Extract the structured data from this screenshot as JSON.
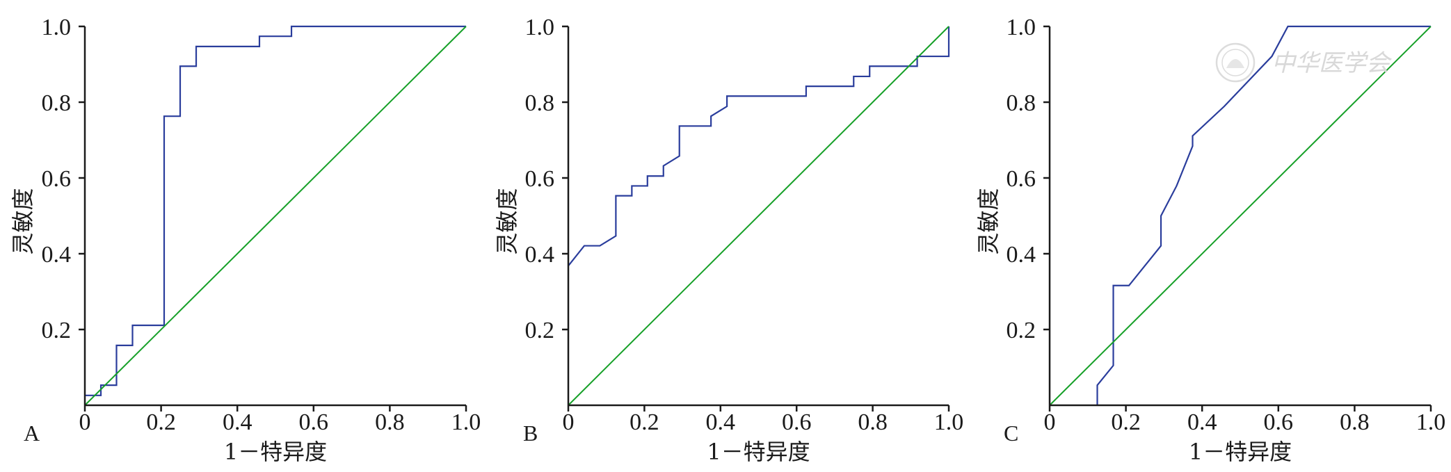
{
  "colors": {
    "roc": "#2a3d9c",
    "reference": "#16a028",
    "axis": "#1a1a1a"
  },
  "watermark": {
    "text": "中华医学会"
  },
  "chart_data": [
    {
      "type": "line",
      "panel_label": "A",
      "xlabel": "1－特异度",
      "ylabel": "灵敏度",
      "xlim": [
        0,
        1
      ],
      "ylim": [
        0,
        1
      ],
      "x_ticks": [
        "0",
        "0.2",
        "0.4",
        "0.6",
        "0.8",
        "1.0"
      ],
      "y_ticks": [
        "0.2",
        "0.4",
        "0.6",
        "0.8",
        "1.0"
      ],
      "grid": false,
      "series": [
        {
          "role": "roc",
          "points": [
            [
              0,
              0.026
            ],
            [
              0.042,
              0.026
            ],
            [
              0.042,
              0.053
            ],
            [
              0.083,
              0.053
            ],
            [
              0.083,
              0.158
            ],
            [
              0.125,
              0.158
            ],
            [
              0.125,
              0.211
            ],
            [
              0.208,
              0.211
            ],
            [
              0.208,
              0.763
            ],
            [
              0.25,
              0.763
            ],
            [
              0.25,
              0.895
            ],
            [
              0.292,
              0.895
            ],
            [
              0.292,
              0.947
            ],
            [
              0.458,
              0.947
            ],
            [
              0.458,
              0.974
            ],
            [
              0.542,
              0.974
            ],
            [
              0.542,
              1.0
            ],
            [
              1.0,
              1.0
            ]
          ]
        },
        {
          "role": "reference",
          "points": [
            [
              0,
              0
            ],
            [
              1,
              1
            ]
          ]
        }
      ]
    },
    {
      "type": "line",
      "panel_label": "B",
      "xlabel": "1－特异度",
      "ylabel": "灵敏度",
      "xlim": [
        0,
        1
      ],
      "ylim": [
        0,
        1
      ],
      "x_ticks": [
        "0",
        "0.2",
        "0.4",
        "0.6",
        "0.8",
        "1.0"
      ],
      "y_ticks": [
        "0.2",
        "0.4",
        "0.6",
        "0.8",
        "1.0"
      ],
      "grid": false,
      "series": [
        {
          "role": "roc",
          "points": [
            [
              0,
              0.368
            ],
            [
              0.042,
              0.421
            ],
            [
              0.083,
              0.421
            ],
            [
              0.125,
              0.447
            ],
            [
              0.125,
              0.553
            ],
            [
              0.167,
              0.553
            ],
            [
              0.167,
              0.579
            ],
            [
              0.208,
              0.579
            ],
            [
              0.208,
              0.605
            ],
            [
              0.25,
              0.605
            ],
            [
              0.25,
              0.632
            ],
            [
              0.292,
              0.658
            ],
            [
              0.292,
              0.737
            ],
            [
              0.375,
              0.737
            ],
            [
              0.375,
              0.763
            ],
            [
              0.417,
              0.789
            ],
            [
              0.417,
              0.816
            ],
            [
              0.625,
              0.816
            ],
            [
              0.625,
              0.842
            ],
            [
              0.75,
              0.842
            ],
            [
              0.75,
              0.868
            ],
            [
              0.792,
              0.868
            ],
            [
              0.792,
              0.895
            ],
            [
              0.917,
              0.895
            ],
            [
              0.917,
              0.921
            ],
            [
              1.0,
              0.921
            ],
            [
              1.0,
              1.0
            ]
          ]
        },
        {
          "role": "reference",
          "points": [
            [
              0,
              0
            ],
            [
              1,
              1
            ]
          ]
        }
      ]
    },
    {
      "type": "line",
      "panel_label": "C",
      "xlabel": "1－特异度",
      "ylabel": "灵敏度",
      "xlim": [
        0,
        1
      ],
      "ylim": [
        0,
        1
      ],
      "x_ticks": [
        "0",
        "0.2",
        "0.4",
        "0.6",
        "0.8",
        "1.0"
      ],
      "y_ticks": [
        "0.2",
        "0.4",
        "0.6",
        "0.8",
        "1.0"
      ],
      "grid": false,
      "series": [
        {
          "role": "roc",
          "points": [
            [
              0.125,
              0
            ],
            [
              0.125,
              0.053
            ],
            [
              0.167,
              0.105
            ],
            [
              0.167,
              0.316
            ],
            [
              0.208,
              0.316
            ],
            [
              0.292,
              0.421
            ],
            [
              0.292,
              0.5
            ],
            [
              0.333,
              0.579
            ],
            [
              0.375,
              0.684
            ],
            [
              0.375,
              0.711
            ],
            [
              0.458,
              0.789
            ],
            [
              0.583,
              0.921
            ],
            [
              0.625,
              1.0
            ],
            [
              1.0,
              1.0
            ]
          ]
        },
        {
          "role": "reference",
          "points": [
            [
              0,
              0
            ],
            [
              1,
              1
            ]
          ]
        }
      ]
    }
  ]
}
